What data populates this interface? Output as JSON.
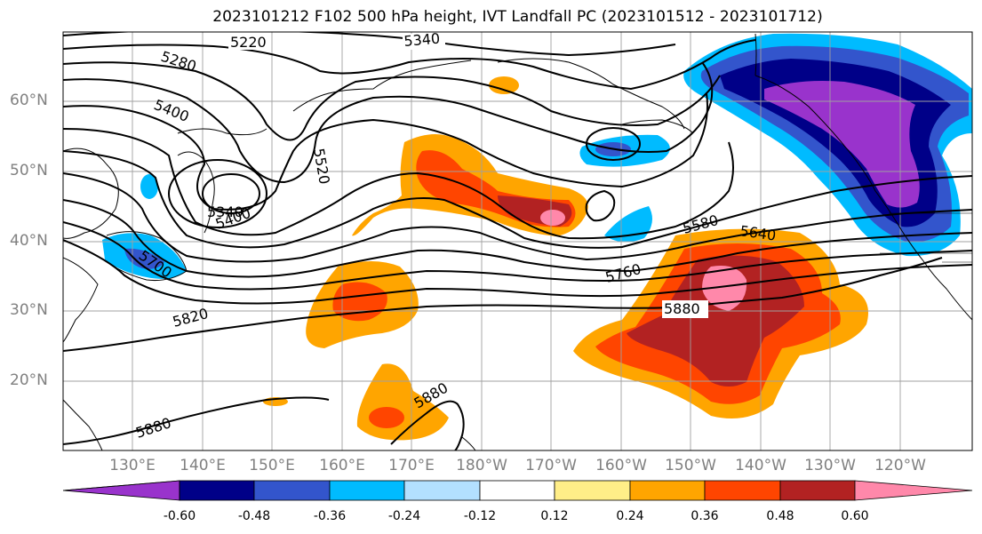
{
  "title": "2023101212 F102 500 hPa height, IVT Landfall PC (2023101512 - 2023101712)",
  "lat_labels": [
    "60°N",
    "50°N",
    "40°N",
    "30°N",
    "20°N"
  ],
  "lon_labels": [
    "130°E",
    "140°E",
    "150°E",
    "160°E",
    "170°E",
    "180°W",
    "170°W",
    "160°W",
    "150°W",
    "140°W",
    "130°W",
    "120°W"
  ],
  "contour_labels": [
    "5220",
    "5280",
    "5340",
    "5400",
    "5520",
    "5340",
    "5400",
    "5700",
    "5820",
    "5580",
    "5640",
    "5760",
    "5880",
    "5880",
    "5880"
  ],
  "colorbar": {
    "colors": [
      "#9933cc",
      "#000088",
      "#3355cc",
      "#00bbff",
      "#b3e0ff",
      "#ffffff",
      "#ffee88",
      "#ffa500",
      "#ff4500",
      "#b22222",
      "#ff88aa"
    ],
    "tick_labels": [
      "-0.60",
      "-0.48",
      "-0.36",
      "-0.24",
      "-0.12",
      "0.12",
      "0.24",
      "0.36",
      "0.48",
      "0.60"
    ]
  },
  "chart_data": {
    "type": "heatmap",
    "title": "2023101212 F102 500 hPa height, IVT Landfall PC (2023101512 - 2023101712)",
    "field": "IVT Landfall PC (filled), 500 hPa height (contours)",
    "xlim": [
      "~122°E",
      "~113°W"
    ],
    "ylim": [
      "~10°N",
      "~70°N"
    ],
    "contour_levels": [
      5220,
      5280,
      5340,
      5400,
      5520,
      5580,
      5640,
      5700,
      5760,
      5820,
      5880
    ],
    "color_levels": [
      -0.6,
      -0.48,
      -0.36,
      -0.24,
      -0.12,
      0.12,
      0.24,
      0.36,
      0.48,
      0.6
    ],
    "grid": true
  }
}
